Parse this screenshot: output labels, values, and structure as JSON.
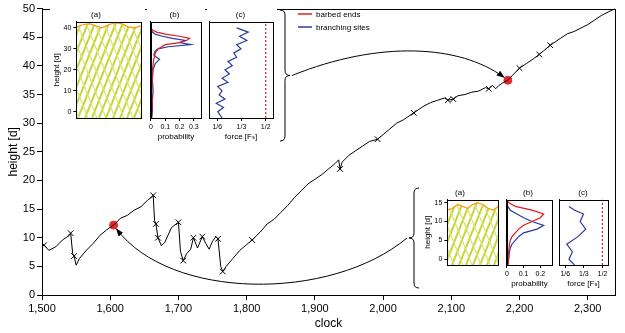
{
  "chart_data": [
    {
      "type": "line",
      "xlabel": "clock",
      "ylabel": "height [d]",
      "xlim": [
        1500,
        2340
      ],
      "ylim": [
        0,
        50
      ],
      "xticks": [
        {
          "value": 1500,
          "label": "1,500"
        },
        {
          "value": 1600,
          "label": "1,600"
        },
        {
          "value": 1700,
          "label": "1,700"
        },
        {
          "value": 1800,
          "label": "1,800"
        },
        {
          "value": 1900,
          "label": "1,900"
        },
        {
          "value": 2000,
          "label": "2,000"
        },
        {
          "value": 2100,
          "label": "2,100"
        },
        {
          "value": 2200,
          "label": "2,200"
        },
        {
          "value": 2300,
          "label": "2,300"
        }
      ],
      "yticks": [
        0,
        5,
        10,
        15,
        20,
        25,
        30,
        35,
        40,
        45,
        50
      ],
      "grid": false,
      "series": [
        {
          "type": "line",
          "color": "#000000",
          "marker": "none",
          "line_style": "solid",
          "x": [
            1500,
            1503,
            1510,
            1520,
            1530,
            1540,
            1542,
            1545,
            1547,
            1550,
            1555,
            1565,
            1575,
            1585,
            1595,
            1605,
            1615,
            1625,
            1635,
            1645,
            1655,
            1660,
            1663,
            1665,
            1667,
            1670,
            1675,
            1680,
            1690,
            1700,
            1703,
            1707,
            1712,
            1718,
            1722,
            1728,
            1735,
            1740,
            1745,
            1750,
            1755,
            1758,
            1762,
            1765,
            1770,
            1780,
            1790,
            1800,
            1808,
            1820,
            1830,
            1840,
            1850,
            1860,
            1870,
            1880,
            1890,
            1900,
            1910,
            1920,
            1930,
            1935,
            1937,
            1940,
            1950,
            1960,
            1970,
            1980,
            1992,
            2000,
            2010,
            2020,
            2030,
            2045,
            2050,
            2060,
            2070,
            2080,
            2090,
            2095,
            2103,
            2110,
            2120,
            2130,
            2140,
            2150,
            2155,
            2160,
            2165,
            2170,
            2175,
            2183,
            2190,
            2200,
            2210,
            2220,
            2229,
            2235,
            2245,
            2250,
            2260,
            2270,
            2280,
            2290,
            2300,
            2310,
            2320,
            2330,
            2340
          ],
          "values": [
            8.6,
            8.7,
            7.8,
            8.4,
            9.6,
            10.4,
            10.8,
            7.2,
            6.8,
            5.2,
            6.4,
            7.8,
            9.0,
            10.4,
            11.4,
            12.2,
            13.4,
            13.9,
            14.8,
            15.4,
            16.6,
            17.0,
            17.4,
            13.0,
            12.4,
            10.0,
            8.6,
            9.2,
            11.8,
            12.7,
            7.6,
            6.0,
            7.2,
            8.0,
            10.0,
            8.2,
            10.2,
            9.0,
            8.0,
            9.4,
            10.2,
            9.8,
            5.0,
            4.1,
            5.0,
            6.4,
            7.8,
            8.8,
            9.6,
            11.0,
            12.4,
            13.2,
            14.4,
            15.6,
            17.0,
            18.2,
            19.4,
            20.2,
            21.0,
            22.0,
            23.0,
            23.6,
            22.0,
            23.2,
            24.4,
            25.2,
            26.0,
            26.8,
            27.2,
            28.0,
            29.0,
            30.0,
            30.6,
            31.8,
            32.2,
            33.0,
            33.6,
            34.0,
            34.4,
            34.0,
            34.2,
            34.8,
            35.0,
            35.4,
            35.6,
            36.2,
            36.0,
            36.6,
            36.0,
            36.6,
            37.0,
            37.5,
            38.4,
            39.6,
            40.4,
            41.2,
            42.0,
            42.6,
            43.6,
            44.0,
            44.8,
            45.6,
            46.0,
            46.6,
            47.2,
            48.0,
            48.8,
            49.4,
            50.0
          ]
        },
        {
          "type": "scatter",
          "color": "#000000",
          "marker": "x",
          "line_style": "none",
          "x": [
            1503,
            1542,
            1547,
            1663,
            1667,
            1670,
            1700,
            1707,
            1722,
            1735,
            1758,
            1765,
            1808,
            1937,
            1992,
            2045,
            2095,
            2103,
            2155,
            2200,
            2229,
            2245
          ],
          "values": [
            8.7,
            10.8,
            6.8,
            17.4,
            12.4,
            10.0,
            12.7,
            6.0,
            10.0,
            10.2,
            9.8,
            4.1,
            9.6,
            22.0,
            27.2,
            31.8,
            34.0,
            34.2,
            36.0,
            39.6,
            42.0,
            43.6
          ]
        },
        {
          "type": "scatter",
          "color": "#e8262b",
          "marker": "circle",
          "line_style": "none",
          "x": [
            1605,
            2183
          ],
          "values": [
            12.2,
            37.5
          ]
        }
      ]
    },
    {
      "type": "line",
      "title": "(a)",
      "ylabel": "height [d]",
      "xlim": [
        0,
        10
      ],
      "ylim": [
        -3,
        43
      ],
      "yticks": [
        0,
        10,
        20,
        30,
        40
      ],
      "tick_labels": "y",
      "series": [
        {
          "color": "#ff9900",
          "line_style": "solid",
          "marker": "none",
          "x": [
            0,
            1,
            2,
            3,
            4,
            5,
            6,
            7,
            8,
            9,
            10
          ],
          "values": [
            40.5,
            41.5,
            42,
            41,
            40,
            41.5,
            42.5,
            42,
            40.5,
            40,
            41
          ]
        }
      ]
    },
    {
      "type": "line",
      "title": "(b)",
      "xlabel": "probability",
      "xlim": [
        0,
        0.35
      ],
      "ylim": [
        -3,
        43
      ],
      "xticks": [
        0,
        0.1,
        0.2,
        0.3
      ],
      "tick_labels": "x",
      "legend": "right",
      "series": [
        {
          "name": "barbed ends",
          "color": "#e41a1c",
          "line_style": "solid",
          "marker": "none",
          "x": [
            0.005,
            0.005,
            0.01,
            0.005,
            0.01,
            0.01,
            0.02,
            0.03,
            0.05,
            0.1,
            0.2,
            0.25,
            0.27,
            0.2,
            0.1,
            0.04,
            0.01,
            0,
            0
          ],
          "values": [
            -3,
            0,
            5,
            10,
            15,
            20,
            25,
            28,
            30,
            32,
            33,
            34,
            35,
            36,
            37,
            38,
            39,
            40,
            42
          ]
        },
        {
          "name": "branching sites",
          "color": "#2a3ba0",
          "line_style": "solid",
          "marker": "none",
          "x": [
            0.005,
            0.01,
            0.01,
            0.015,
            0.01,
            0.015,
            0.03,
            0.06,
            0.02,
            0.03,
            0.05,
            0.12,
            0.28,
            0.2,
            0.24,
            0.15,
            0.08,
            0.03,
            0.01,
            0,
            0
          ],
          "values": [
            -3,
            0,
            5,
            10,
            15,
            20,
            23,
            25,
            27,
            29,
            30,
            31,
            32,
            33,
            34,
            35,
            36,
            37,
            38,
            40,
            42
          ]
        }
      ]
    },
    {
      "type": "line",
      "title": "(c)",
      "xlabel": "force [Fₛ]",
      "xlim": [
        0.11,
        0.55
      ],
      "ylim": [
        -3,
        43
      ],
      "xticks": [
        {
          "value": 0.16667,
          "label": "1/6"
        },
        {
          "value": 0.33333,
          "label": "1/3"
        },
        {
          "value": 0.5,
          "label": "1/2"
        }
      ],
      "tick_labels": "x",
      "series": [
        {
          "color": "#2a3ba0",
          "line_style": "solid",
          "marker": "none",
          "x": [
            0.2,
            0.17,
            0.21,
            0.16,
            0.22,
            0.18,
            0.2,
            0.17,
            0.24,
            0.2,
            0.25,
            0.22,
            0.27,
            0.24,
            0.3,
            0.28,
            0.33,
            0.3,
            0.37,
            0.32,
            0.38,
            0.3
          ],
          "values": [
            -3,
            0,
            2,
            4,
            6,
            8,
            10,
            12,
            14,
            16,
            18,
            20,
            22,
            24,
            26,
            28,
            30,
            32,
            34,
            36,
            38,
            40
          ]
        },
        {
          "color": "#e41a1c",
          "line_style": "dotted",
          "marker": "none",
          "x": [
            0.5,
            0.5
          ],
          "values": [
            -3,
            43
          ]
        }
      ]
    },
    {
      "type": "line",
      "title": "(a)",
      "ylabel": "height [d]",
      "xlim": [
        0,
        10
      ],
      "ylim": [
        -1.5,
        15.8
      ],
      "yticks": [
        0,
        5,
        10,
        15
      ],
      "tick_labels": "y",
      "series": [
        {
          "color": "#ff9900",
          "line_style": "solid",
          "marker": "none",
          "x": [
            0,
            1,
            2,
            3,
            4,
            5,
            6,
            7,
            8,
            9,
            10
          ],
          "values": [
            13,
            13.5,
            14.5,
            14,
            13.5,
            14.5,
            15,
            14.5,
            13.5,
            13,
            14
          ]
        }
      ]
    },
    {
      "type": "line",
      "title": "(b)",
      "xlabel": "probability",
      "xlim": [
        0,
        0.27
      ],
      "ylim": [
        -1.5,
        15.8
      ],
      "xticks": [
        0,
        0.1,
        0.2
      ],
      "tick_labels": "x",
      "series": [
        {
          "color": "#e41a1c",
          "line_style": "solid",
          "marker": "none",
          "x": [
            0.005,
            0.01,
            0.01,
            0.015,
            0.02,
            0.03,
            0.05,
            0.07,
            0.1,
            0.15,
            0.2,
            0.22,
            0.15,
            0.05,
            0.01,
            0
          ],
          "values": [
            -1.5,
            0,
            2,
            4,
            5,
            6,
            7,
            8,
            9,
            10,
            11,
            12,
            13,
            14,
            15,
            15.8
          ]
        },
        {
          "color": "#2a3ba0",
          "line_style": "solid",
          "marker": "none",
          "x": [
            0.005,
            0.01,
            0.015,
            0.02,
            0.03,
            0.05,
            0.07,
            0.1,
            0.18,
            0.22,
            0.15,
            0.1,
            0.06,
            0.02,
            0.005,
            0
          ],
          "values": [
            -1.5,
            0,
            2,
            3,
            4,
            5,
            6,
            7,
            8,
            9,
            10,
            11,
            12,
            13,
            14,
            15
          ]
        }
      ]
    },
    {
      "type": "line",
      "title": "(c)",
      "xlabel": "force [Fₛ]",
      "xlim": [
        0.11,
        0.55
      ],
      "ylim": [
        -1.5,
        15.8
      ],
      "xticks": [
        {
          "value": 0.16667,
          "label": "1/6"
        },
        {
          "value": 0.33333,
          "label": "1/3"
        },
        {
          "value": 0.5,
          "label": "1/2"
        }
      ],
      "tick_labels": "x",
      "series": [
        {
          "color": "#2a3ba0",
          "line_style": "solid",
          "marker": "none",
          "x": [
            0.25,
            0.2,
            0.23,
            0.18,
            0.28,
            0.35,
            0.3,
            0.33,
            0.25,
            0.2
          ],
          "values": [
            -1.5,
            0,
            2,
            4,
            6,
            8,
            10,
            12,
            13,
            14
          ]
        },
        {
          "color": "#e41a1c",
          "line_style": "dotted",
          "marker": "none",
          "x": [
            0.5,
            0.5
          ],
          "values": [
            -1.5,
            15.8
          ]
        }
      ]
    }
  ]
}
